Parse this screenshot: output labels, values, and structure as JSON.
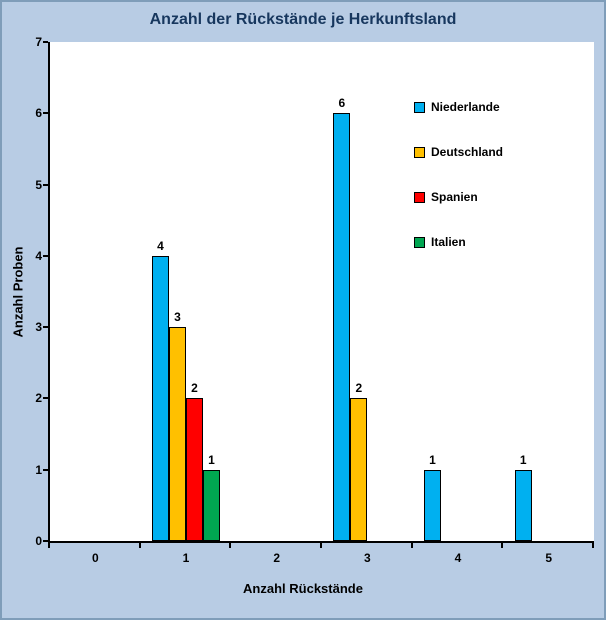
{
  "chart_data": {
    "type": "bar",
    "title": "Anzahl der Rückstände je Herkunftsland",
    "xlabel": "Anzahl Rückstände",
    "ylabel": "Anzahl Proben",
    "categories": [
      "0",
      "1",
      "2",
      "3",
      "4",
      "5"
    ],
    "series": [
      {
        "name": "Niederlande",
        "color": "#00B0F0",
        "values": [
          0,
          4,
          0,
          6,
          1,
          1
        ]
      },
      {
        "name": "Deutschland",
        "color": "#FFC000",
        "values": [
          0,
          3,
          0,
          2,
          0,
          0
        ]
      },
      {
        "name": "Spanien",
        "color": "#FF0000",
        "values": [
          0,
          2,
          0,
          0,
          0,
          0
        ]
      },
      {
        "name": "Italien",
        "color": "#00A651",
        "values": [
          0,
          1,
          0,
          0,
          0,
          0
        ]
      }
    ],
    "ylim": [
      0,
      7
    ],
    "yticks": [
      0,
      1,
      2,
      3,
      4,
      5,
      6,
      7
    ],
    "grid": false,
    "bar_labels": true,
    "legend_position": "inside-top-right",
    "colors": {
      "background": "#B8CCE4",
      "plot_background": "#FFFFFF",
      "title": "#17375E",
      "axis": "#000000",
      "frame_border": "#7F9DB9"
    }
  }
}
